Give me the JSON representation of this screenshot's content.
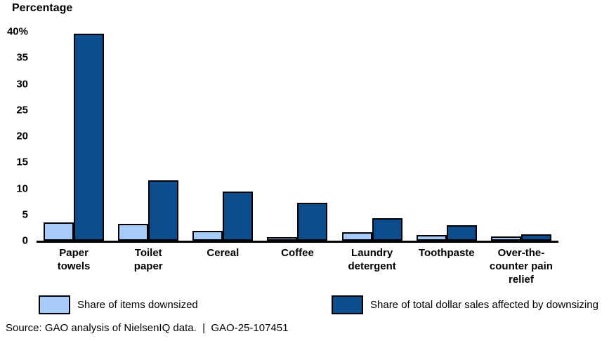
{
  "title": "Percentage",
  "chart_data": {
    "type": "bar",
    "title": "",
    "ylabel": "Percentage",
    "xlabel": "",
    "ylim": [
      0,
      40
    ],
    "grid": false,
    "legend_position": "bottom",
    "categories": [
      "Paper\ntowels",
      "Toilet\npaper",
      "Cereal",
      "Coffee",
      "Laundry\ndetergent",
      "Toothpaste",
      "Over-the-\ncounter pain\nrelief"
    ],
    "series": [
      {
        "name": "Share of items downsized",
        "color": "#A6CBF8",
        "values": [
          2.9,
          2.7,
          1.4,
          0.2,
          1.1,
          0.6,
          0.3
        ]
      },
      {
        "name": "Share of total dollar sales affected by downsizing",
        "color": "#0D4D8E",
        "values": [
          39,
          11,
          8.8,
          6.7,
          3.7,
          2.4,
          0.7
        ]
      }
    ],
    "yticks": [
      {
        "value": 40,
        "label": "40%"
      },
      {
        "value": 35,
        "label": "35"
      },
      {
        "value": 30,
        "label": "30"
      },
      {
        "value": 25,
        "label": "25"
      },
      {
        "value": 20,
        "label": "20"
      },
      {
        "value": 15,
        "label": "15"
      },
      {
        "value": 10,
        "label": "10"
      },
      {
        "value": 5,
        "label": "5"
      },
      {
        "value": 0,
        "label": "0"
      }
    ]
  },
  "source_line": "Source: GAO analysis of NielsenIQ data.  |  GAO-25-107451"
}
